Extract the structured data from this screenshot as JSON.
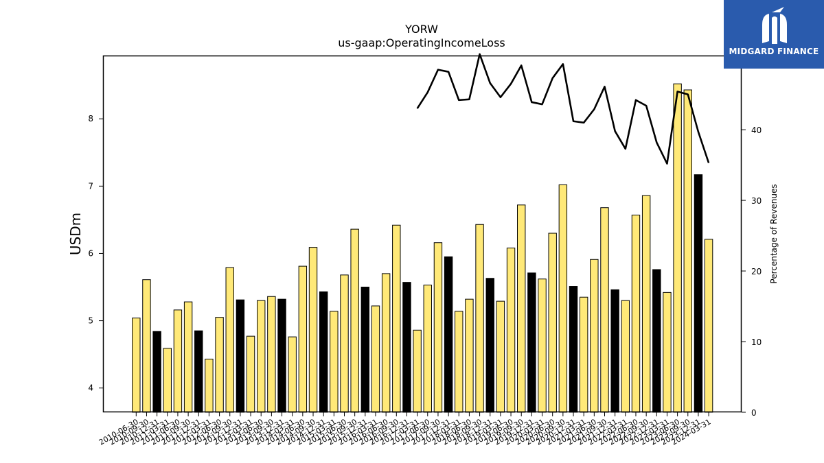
{
  "chart_data": {
    "type": "bar",
    "title": "YORW",
    "subtitle": "us-gaap:OperatingIncomeLoss",
    "ylabel": "USDm",
    "y2label": "Percentage of Revenues",
    "ylim": [
      3.64,
      8.94
    ],
    "y2lim": [
      0,
      50.5
    ],
    "yticks": [
      4,
      5,
      6,
      7,
      8
    ],
    "y2ticks": [
      0,
      10,
      20,
      30,
      40,
      50
    ],
    "categories": [
      "2010-06-30",
      "2010-09-30",
      "2010-12-31",
      "2011-03-31",
      "2011-06-30",
      "2011-09-30",
      "2011-12-31",
      "2012-03-31",
      "2012-06-30",
      "2012-09-30",
      "2012-12-31",
      "2013-03-31",
      "2013-06-30",
      "2013-09-30",
      "2013-12-31",
      "2014-03-31",
      "2014-06-30",
      "2014-09-30",
      "2014-12-31",
      "2015-03-31",
      "2015-06-30",
      "2015-09-30",
      "2015-12-31",
      "2016-03-31",
      "2016-06-30",
      "2016-09-30",
      "2016-12-31",
      "2017-03-31",
      "2017-06-30",
      "2017-09-30",
      "2017-12-31",
      "2018-03-31",
      "2018-06-30",
      "2018-09-30",
      "2018-12-31",
      "2019-03-31",
      "2019-06-30",
      "2019-09-30",
      "2019-12-31",
      "2020-03-31",
      "2020-06-30",
      "2020-09-30",
      "2020-12-31",
      "2021-03-31",
      "2021-06-30",
      "2021-09-30",
      "2021-12-31",
      "2022-03-31",
      "2022-06-30",
      "2022-09-30",
      "2022-12-31",
      "2023-03-31",
      "2023-06-30",
      "2023-09-30",
      "2023-12-31",
      "2024-03-31"
    ],
    "series": [
      {
        "values": [
          5.04,
          5.61,
          4.84,
          4.59,
          5.16,
          5.28,
          4.85,
          4.43,
          5.05,
          5.79,
          5.31,
          4.77,
          5.3,
          5.36,
          5.32,
          4.76,
          5.81,
          6.09,
          5.43,
          5.14,
          5.68,
          6.36,
          5.5,
          5.22,
          5.7,
          6.42,
          5.57,
          4.86,
          5.53,
          6.16,
          5.95,
          5.14,
          5.32,
          6.43,
          5.63,
          5.29,
          6.08,
          6.72,
          5.71,
          5.62,
          6.3,
          7.02,
          5.51,
          5.35,
          5.91,
          6.68,
          5.46,
          5.3,
          6.57,
          6.86,
          5.76,
          5.42,
          8.52,
          8.43,
          7.17,
          6.21
        ],
        "highlight": [
          false,
          false,
          true,
          false,
          false,
          false,
          true,
          false,
          false,
          false,
          true,
          false,
          false,
          false,
          true,
          false,
          false,
          false,
          true,
          false,
          false,
          false,
          true,
          false,
          false,
          false,
          true,
          false,
          false,
          false,
          true,
          false,
          false,
          false,
          true,
          false,
          false,
          false,
          true,
          false,
          false,
          false,
          true,
          false,
          false,
          false,
          true,
          false,
          false,
          false,
          true,
          false,
          false,
          false,
          true,
          false
        ]
      },
      {
        "axis": "right",
        "type": "line",
        "values": [
          null,
          null,
          null,
          null,
          null,
          null,
          null,
          null,
          null,
          null,
          null,
          null,
          null,
          null,
          null,
          null,
          null,
          null,
          null,
          null,
          null,
          null,
          null,
          null,
          null,
          null,
          null,
          43,
          45.3,
          48.5,
          48.2,
          44.2,
          44.3,
          50.7,
          46.6,
          44.6,
          46.5,
          49.1,
          43.9,
          43.6,
          47.3,
          49.3,
          41.2,
          41.0,
          42.9,
          46.1,
          39.8,
          37.3,
          44.2,
          43.4,
          38.2,
          35.2,
          45.4,
          45.0,
          39.7,
          35.3
        ]
      }
    ],
    "colors": {
      "bar": "#ffe978",
      "bar_highlight": "#000000",
      "bar_edge": "#000000",
      "line": "#000000"
    }
  },
  "logo": {
    "text": "MIDGARD FINANCE",
    "background": "#2a5bad"
  }
}
